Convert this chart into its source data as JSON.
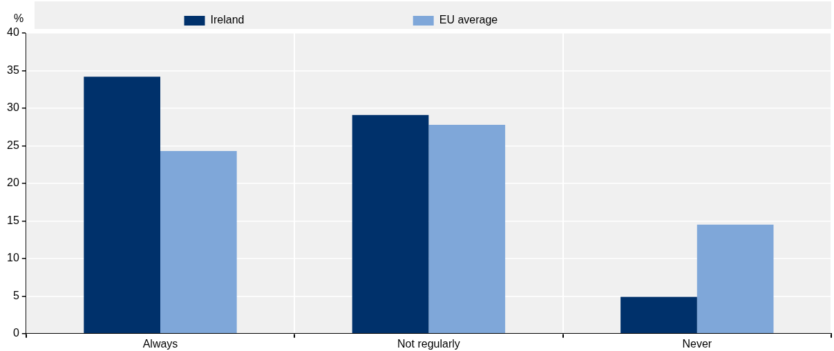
{
  "chart_data": {
    "type": "bar",
    "ylabel": "%",
    "categories": [
      "Always",
      "Not regularly",
      "Never"
    ],
    "series": [
      {
        "name": "Ireland",
        "color": "#00316b",
        "values": [
          34.2,
          29.1,
          4.9
        ]
      },
      {
        "name": "EU average",
        "color": "#7fa7d9",
        "values": [
          24.3,
          27.8,
          14.5
        ]
      }
    ],
    "ylim": [
      0,
      40
    ],
    "yticks": [
      0,
      5,
      10,
      15,
      20,
      25,
      30,
      35,
      40
    ],
    "grid": true,
    "legend": "top"
  }
}
